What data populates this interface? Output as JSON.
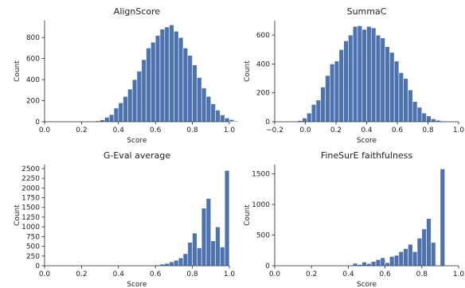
{
  "chart_data": [
    {
      "type": "bar",
      "title": "AlignScore",
      "xlabel": "Score",
      "ylabel": "Count",
      "xlim": [
        0.0,
        1.0
      ],
      "ylim": [
        0,
        960
      ],
      "xticks": [
        0.0,
        0.2,
        0.4,
        0.6,
        0.8,
        1.0
      ],
      "xtick_labels": [
        "0.0",
        "0.2",
        "0.4",
        "0.6",
        "0.8",
        "1.0"
      ],
      "yticks": [
        0,
        200,
        400,
        600,
        800
      ],
      "ytick_labels": [
        "0",
        "200",
        "400",
        "600",
        "800"
      ],
      "bin_edges_start": 0.25,
      "bin_width": 0.025,
      "values": [
        3,
        8,
        18,
        42,
        68,
        130,
        180,
        240,
        310,
        400,
        480,
        590,
        700,
        755,
        820,
        880,
        900,
        920,
        860,
        800,
        700,
        630,
        540,
        420,
        320,
        240,
        170,
        110,
        65,
        35,
        20,
        8,
        3
      ]
    },
    {
      "type": "bar",
      "title": "SummaC",
      "xlabel": "Score",
      "ylabel": "Count",
      "xlim": [
        -0.2,
        1.0
      ],
      "ylim": [
        0,
        700
      ],
      "xticks": [
        -0.2,
        0.0,
        0.2,
        0.4,
        0.6,
        0.8,
        1.0
      ],
      "xtick_labels": [
        "−0.2",
        "0.0",
        "0.2",
        "0.4",
        "0.6",
        "0.8",
        "1.0"
      ],
      "yticks": [
        0,
        200,
        400,
        600
      ],
      "ytick_labels": [
        "0",
        "200",
        "400",
        "600"
      ],
      "bin_edges_start": -0.05,
      "bin_width": 0.03,
      "values": [
        8,
        25,
        60,
        120,
        150,
        240,
        320,
        400,
        420,
        500,
        560,
        600,
        660,
        665,
        640,
        660,
        650,
        600,
        580,
        520,
        480,
        420,
        340,
        300,
        220,
        140,
        100,
        60,
        40,
        20,
        10,
        5
      ]
    },
    {
      "type": "bar",
      "title": "G-Eval average",
      "xlabel": "Score",
      "ylabel": "Count",
      "xlim": [
        0.0,
        1.0
      ],
      "ylim": [
        0,
        2600
      ],
      "xticks": [
        0.0,
        0.2,
        0.4,
        0.6,
        0.8,
        1.0
      ],
      "xtick_labels": [
        "0.0",
        "0.2",
        "0.4",
        "0.6",
        "0.8",
        "1.0"
      ],
      "yticks": [
        0,
        250,
        500,
        750,
        1000,
        1250,
        1500,
        1750,
        2000,
        2250,
        2500
      ],
      "ytick_labels": [
        "0",
        "250",
        "500",
        "750",
        "1000",
        "1250",
        "1500",
        "1750",
        "2000",
        "2250",
        "2500"
      ],
      "bin_edges_start": 0.575,
      "bin_width": 0.025,
      "values": [
        10,
        20,
        40,
        60,
        100,
        140,
        200,
        310,
        600,
        840,
        460,
        1480,
        1730,
        640,
        1000,
        480,
        2450
      ]
    },
    {
      "type": "bar",
      "title": "FineSurE faithfulness",
      "xlabel": "Score",
      "ylabel": "Count",
      "xlim": [
        0.0,
        1.0
      ],
      "ylim": [
        0,
        1650
      ],
      "xticks": [
        0.0,
        0.2,
        0.4,
        0.6,
        0.8,
        1.0
      ],
      "xtick_labels": [
        "0.0",
        "0.2",
        "0.4",
        "0.6",
        "0.8",
        "1.0"
      ],
      "yticks": [
        0,
        500,
        1000,
        1500
      ],
      "ytick_labels": [
        "0",
        "500",
        "1000",
        "1500"
      ],
      "bin_edges_start": 0.4,
      "bin_width": 0.025,
      "values": [
        10,
        40,
        20,
        60,
        35,
        70,
        100,
        130,
        50,
        150,
        170,
        230,
        280,
        350,
        230,
        450,
        600,
        770,
        380,
        0,
        1580
      ]
    }
  ]
}
